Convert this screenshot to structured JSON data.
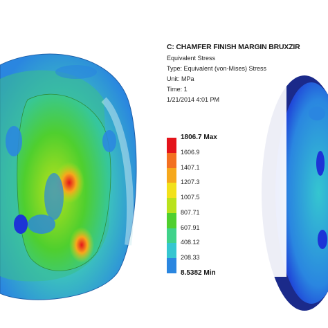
{
  "result": {
    "title": "C: CHAMFER FINISH MARGIN BRUXZIR",
    "lines": [
      "Equivalent Stress",
      "Type: Equivalent (von-Mises) Stress",
      "Unit: MPa",
      "Time: 1",
      "1/21/2014 4:01 PM"
    ]
  },
  "legend": {
    "items": [
      {
        "label": "1806.7 Max",
        "color": "#e4141b",
        "bold": true
      },
      {
        "label": "1606.9",
        "color": "#f37021"
      },
      {
        "label": "1407.1",
        "color": "#f6a81c"
      },
      {
        "label": "1207.3",
        "color": "#f2e11a"
      },
      {
        "label": "1007.5",
        "color": "#b9e21c"
      },
      {
        "label": "807.71",
        "color": "#4fcf2e"
      },
      {
        "label": "607.91",
        "color": "#3fd28a"
      },
      {
        "label": "408.12",
        "color": "#35c6d0"
      },
      {
        "label": "208.33",
        "color": "#2a86e0"
      },
      {
        "label": "8.5382 Min",
        "color": "#1c34d6",
        "bold": true
      }
    ]
  },
  "colors": {
    "stress_low": "#1c34d6",
    "stress_mid_low": "#2a86e0",
    "stress_light": "#35c6d0",
    "stress_mid": "#4fcf2e",
    "stress_high": "#e4141b"
  }
}
